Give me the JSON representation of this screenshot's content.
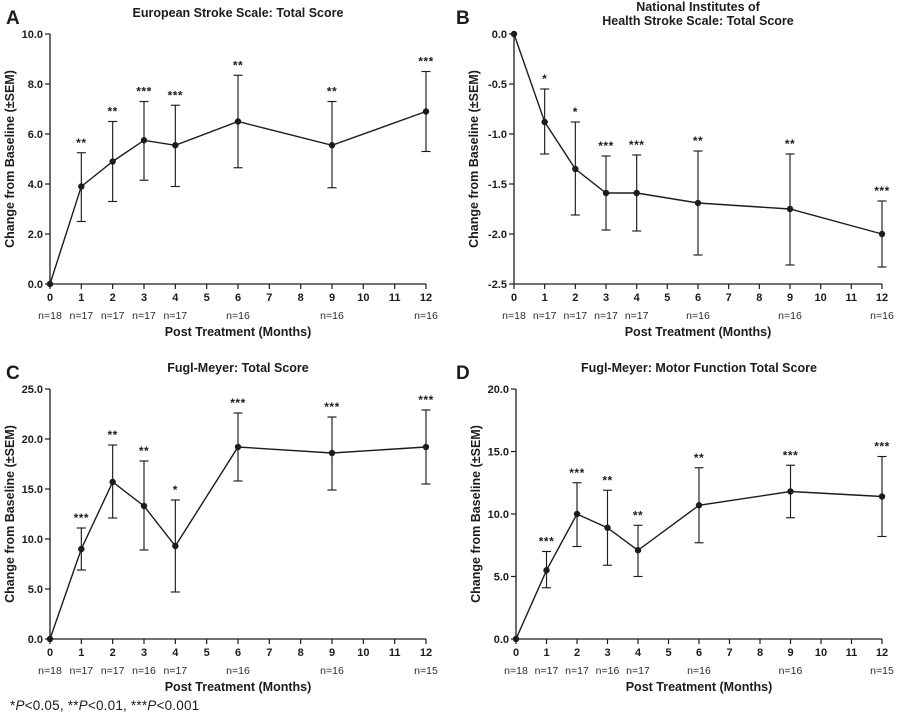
{
  "colors": {
    "ink": "#1c1c1c",
    "background": "#ffffff"
  },
  "footnote": {
    "plain": "*P<0.05, **P<0.01, ***P<0.001",
    "segments": [
      {
        "text": "*"
      },
      {
        "text": "P",
        "italic": true
      },
      {
        "text": "<0.05, **"
      },
      {
        "text": "P",
        "italic": true
      },
      {
        "text": "<0.01, ***"
      },
      {
        "text": "P",
        "italic": true
      },
      {
        "text": "<0.001"
      }
    ]
  },
  "chart_data": [
    {
      "type": "line",
      "panel_label": "A",
      "title_lines": [
        "European Stroke Scale: Total Score"
      ],
      "xlabel": "Post Treatment (Months)",
      "ylabel": "Change from Baseline (±SEM)",
      "xlim": [
        0,
        12
      ],
      "xticks": [
        0,
        1,
        2,
        3,
        4,
        5,
        6,
        7,
        8,
        9,
        10,
        11,
        12
      ],
      "ylim": [
        0,
        10
      ],
      "yticks": [
        {
          "value": 0,
          "label": "0.0"
        },
        {
          "value": 2,
          "label": "2.0"
        },
        {
          "value": 4,
          "label": "4.0"
        },
        {
          "value": 6,
          "label": "6.0"
        },
        {
          "value": 8,
          "label": "8.0"
        },
        {
          "value": 10,
          "label": "10.0"
        }
      ],
      "grid": false,
      "legend": null,
      "points": [
        {
          "x": 0,
          "y": 0.0,
          "err_low": 0.0,
          "err_high": 0.0,
          "sig": "",
          "n": "n=18"
        },
        {
          "x": 1,
          "y": 3.9,
          "err_low": 2.5,
          "err_high": 5.25,
          "sig": "**",
          "n": "n=17"
        },
        {
          "x": 2,
          "y": 4.9,
          "err_low": 3.3,
          "err_high": 6.5,
          "sig": "**",
          "n": "n=17"
        },
        {
          "x": 3,
          "y": 5.75,
          "err_low": 4.15,
          "err_high": 7.3,
          "sig": "***",
          "n": "n=17"
        },
        {
          "x": 4,
          "y": 5.55,
          "err_low": 3.9,
          "err_high": 7.15,
          "sig": "***",
          "n": "n=17"
        },
        {
          "x": 6,
          "y": 6.5,
          "err_low": 4.65,
          "err_high": 8.35,
          "sig": "**",
          "n": "n=16"
        },
        {
          "x": 9,
          "y": 5.55,
          "err_low": 3.85,
          "err_high": 7.3,
          "sig": "**",
          "n": "n=16"
        },
        {
          "x": 12,
          "y": 6.9,
          "err_low": 5.3,
          "err_high": 8.5,
          "sig": "***",
          "n": "n=16"
        }
      ]
    },
    {
      "type": "line",
      "panel_label": "B",
      "title_lines": [
        "National Institutes of",
        "Health Stroke Scale: Total Score"
      ],
      "xlabel": "Post Treatment (Months)",
      "ylabel": "Change from Baseline (±SEM)",
      "xlim": [
        0,
        12
      ],
      "xticks": [
        0,
        1,
        2,
        3,
        4,
        5,
        6,
        7,
        8,
        9,
        10,
        11,
        12
      ],
      "ylim": [
        -2.5,
        0
      ],
      "yticks": [
        {
          "value": 0,
          "label": "0.0"
        },
        {
          "value": -0.5,
          "label": "-0.5"
        },
        {
          "value": -1,
          "label": "-1.0"
        },
        {
          "value": -1.5,
          "label": "-1.5"
        },
        {
          "value": -2,
          "label": "-2.0"
        },
        {
          "value": -2.5,
          "label": "-2.5"
        }
      ],
      "grid": false,
      "legend": null,
      "points": [
        {
          "x": 0,
          "y": 0.0,
          "err_low": 0.0,
          "err_high": 0.0,
          "sig": "",
          "n": "n=18"
        },
        {
          "x": 1,
          "y": -0.88,
          "err_low": -1.2,
          "err_high": -0.55,
          "sig": "*",
          "n": "n=17"
        },
        {
          "x": 2,
          "y": -1.35,
          "err_low": -1.81,
          "err_high": -0.88,
          "sig": "*",
          "n": "n=17"
        },
        {
          "x": 3,
          "y": -1.59,
          "err_low": -1.96,
          "err_high": -1.22,
          "sig": "***",
          "n": "n=17"
        },
        {
          "x": 4,
          "y": -1.59,
          "err_low": -1.97,
          "err_high": -1.21,
          "sig": "***",
          "n": "n=17"
        },
        {
          "x": 6,
          "y": -1.69,
          "err_low": -2.21,
          "err_high": -1.17,
          "sig": "**",
          "n": "n=16"
        },
        {
          "x": 9,
          "y": -1.75,
          "err_low": -2.31,
          "err_high": -1.2,
          "sig": "**",
          "n": "n=16"
        },
        {
          "x": 12,
          "y": -2.0,
          "err_low": -2.33,
          "err_high": -1.67,
          "sig": "***",
          "n": "n=16"
        }
      ]
    },
    {
      "type": "line",
      "panel_label": "C",
      "title_lines": [
        "Fugl-Meyer: Total Score"
      ],
      "xlabel": "Post Treatment (Months)",
      "ylabel": "Change from Baseline (±SEM)",
      "xlim": [
        0,
        12
      ],
      "xticks": [
        0,
        1,
        2,
        3,
        4,
        5,
        6,
        7,
        8,
        9,
        10,
        11,
        12
      ],
      "ylim": [
        0,
        25
      ],
      "yticks": [
        {
          "value": 0,
          "label": "0.0"
        },
        {
          "value": 5,
          "label": "5.0"
        },
        {
          "value": 10,
          "label": "10.0"
        },
        {
          "value": 15,
          "label": "15.0"
        },
        {
          "value": 20,
          "label": "20.0"
        },
        {
          "value": 25,
          "label": "25.0"
        }
      ],
      "grid": false,
      "legend": null,
      "points": [
        {
          "x": 0,
          "y": 0.0,
          "err_low": 0.0,
          "err_high": 0.0,
          "sig": "",
          "n": "n=18"
        },
        {
          "x": 1,
          "y": 9.0,
          "err_low": 6.9,
          "err_high": 11.1,
          "sig": "***",
          "n": "n=17"
        },
        {
          "x": 2,
          "y": 15.7,
          "err_low": 12.1,
          "err_high": 19.4,
          "sig": "**",
          "n": "n=17"
        },
        {
          "x": 3,
          "y": 13.3,
          "err_low": 8.9,
          "err_high": 17.8,
          "sig": "**",
          "n": "n=16"
        },
        {
          "x": 4,
          "y": 9.3,
          "err_low": 4.7,
          "err_high": 13.9,
          "sig": "*",
          "n": "n=17"
        },
        {
          "x": 6,
          "y": 19.2,
          "err_low": 15.8,
          "err_high": 22.6,
          "sig": "***",
          "n": "n=16"
        },
        {
          "x": 9,
          "y": 18.6,
          "err_low": 14.9,
          "err_high": 22.2,
          "sig": "***",
          "n": "n=16"
        },
        {
          "x": 12,
          "y": 19.2,
          "err_low": 15.5,
          "err_high": 22.9,
          "sig": "***",
          "n": "n=15"
        }
      ]
    },
    {
      "type": "line",
      "panel_label": "D",
      "title_lines": [
        "Fugl-Meyer: Motor Function Total Score"
      ],
      "xlabel": "Post Treatment (Months)",
      "ylabel": "Change from Baseline (±SEM)",
      "xlim": [
        0,
        12
      ],
      "xticks": [
        0,
        1,
        2,
        3,
        4,
        5,
        6,
        7,
        8,
        9,
        10,
        11,
        12
      ],
      "ylim": [
        0,
        20
      ],
      "yticks": [
        {
          "value": 0,
          "label": "0.0"
        },
        {
          "value": 5,
          "label": "5.0"
        },
        {
          "value": 10,
          "label": "10.0"
        },
        {
          "value": 15,
          "label": "15.0"
        },
        {
          "value": 20,
          "label": "20.0"
        }
      ],
      "grid": false,
      "legend": null,
      "points": [
        {
          "x": 0,
          "y": 0.0,
          "err_low": 0.0,
          "err_high": 0.0,
          "sig": "",
          "n": "n=18"
        },
        {
          "x": 1,
          "y": 5.5,
          "err_low": 4.1,
          "err_high": 7.0,
          "sig": "***",
          "n": "n=17"
        },
        {
          "x": 2,
          "y": 10.0,
          "err_low": 7.4,
          "err_high": 12.5,
          "sig": "***",
          "n": "n=17"
        },
        {
          "x": 3,
          "y": 8.9,
          "err_low": 5.9,
          "err_high": 11.9,
          "sig": "**",
          "n": "n=16"
        },
        {
          "x": 4,
          "y": 7.1,
          "err_low": 5.0,
          "err_high": 9.1,
          "sig": "**",
          "n": "n=17"
        },
        {
          "x": 6,
          "y": 10.7,
          "err_low": 7.7,
          "err_high": 13.7,
          "sig": "**",
          "n": "n=16"
        },
        {
          "x": 9,
          "y": 11.8,
          "err_low": 9.7,
          "err_high": 13.9,
          "sig": "***",
          "n": "n=16"
        },
        {
          "x": 12,
          "y": 11.4,
          "err_low": 8.2,
          "err_high": 14.6,
          "sig": "***",
          "n": "n=15"
        }
      ]
    }
  ]
}
